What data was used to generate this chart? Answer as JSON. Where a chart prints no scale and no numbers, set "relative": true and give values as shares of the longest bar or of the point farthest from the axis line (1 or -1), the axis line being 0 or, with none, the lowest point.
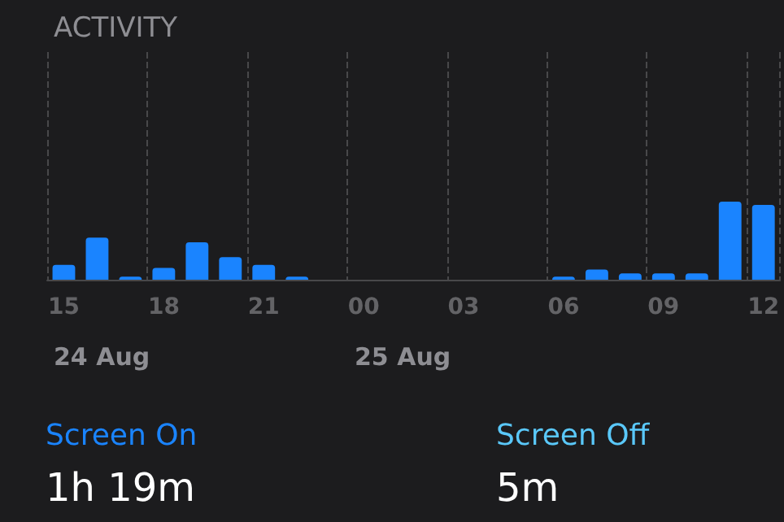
{
  "chart_data": {
    "type": "bar",
    "title": "ACTIVITY",
    "relative": true,
    "grid": true,
    "color": "#1a84ff",
    "categories": [
      "15",
      null,
      null,
      "18",
      null,
      null,
      "21",
      null,
      null,
      "00",
      null,
      null,
      "03",
      null,
      null,
      "06",
      null,
      null,
      "09",
      null,
      null,
      "12"
    ],
    "values": [
      0.19,
      0.54,
      0.04,
      0.15,
      0.48,
      0.29,
      0.19,
      0.04,
      0,
      0,
      0,
      0,
      0,
      0,
      0,
      0.04,
      0.13,
      0.08,
      0.08,
      0.08,
      1,
      0.96
    ],
    "annotations": [
      "24 Aug",
      "25 Aug",
      "Screen On",
      "1h 19m",
      "Screen Off",
      "5m"
    ]
  }
}
